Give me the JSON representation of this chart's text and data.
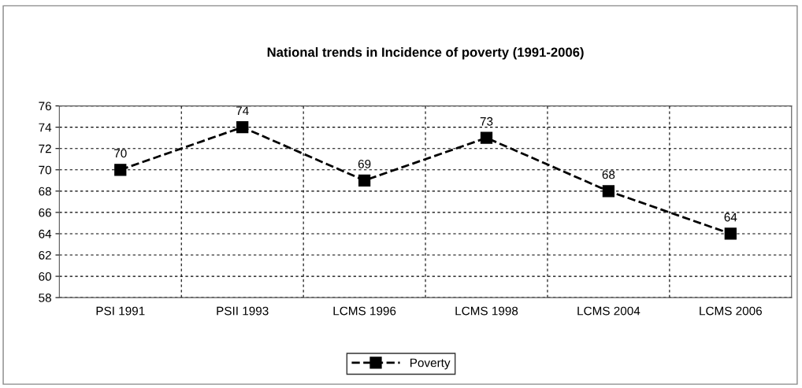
{
  "chart_data": {
    "type": "line",
    "title": "National trends in Incidence of poverty (1991-2006)",
    "categories": [
      "PSI 1991",
      "PSII 1993",
      "LCMS 1996",
      "LCMS 1998",
      "LCMS 2004",
      "LCMS 2006"
    ],
    "series": [
      {
        "name": "Poverty",
        "color": "#000000",
        "values": [
          70,
          74,
          69,
          73,
          68,
          64
        ]
      }
    ],
    "ylim": [
      58,
      76
    ],
    "yticks": [
      58,
      60,
      62,
      64,
      66,
      68,
      70,
      72,
      74,
      76
    ],
    "grid": true,
    "legend": "bottom",
    "marker": "square",
    "line_style": "dashed",
    "data_labels": true
  }
}
